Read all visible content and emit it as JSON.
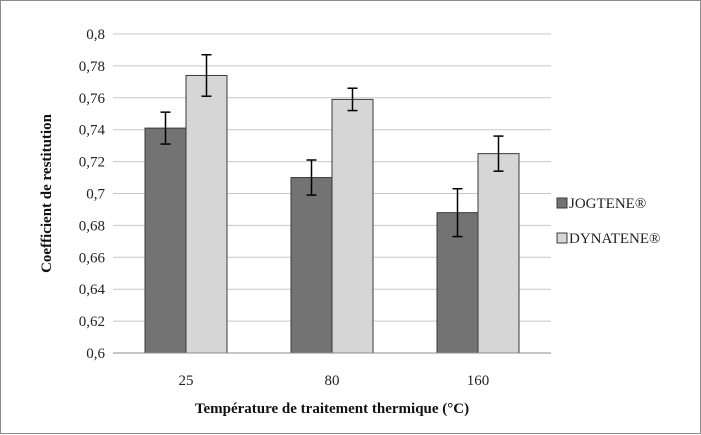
{
  "chart_data": {
    "type": "bar",
    "title": "",
    "xlabel": "Température de traitement thermique (°C)",
    "ylabel": "Coefficient de restitution",
    "categories": [
      "25",
      "80",
      "160"
    ],
    "ylim": [
      0.6,
      0.8
    ],
    "yticks": [
      "0,6",
      "0,62",
      "0,64",
      "0,66",
      "0,68",
      "0,7",
      "0,72",
      "0,74",
      "0,76",
      "0,78",
      "0,8"
    ],
    "grid": true,
    "legend_position": "right",
    "series": [
      {
        "name": "JOGTENE®",
        "color": "#737373",
        "values": [
          0.741,
          0.71,
          0.688
        ],
        "errors": [
          0.01,
          0.011,
          0.015
        ]
      },
      {
        "name": "DYNATENE®",
        "color": "#d6d6d6",
        "values": [
          0.774,
          0.759,
          0.725
        ],
        "errors": [
          0.013,
          0.007,
          0.011
        ]
      }
    ]
  }
}
